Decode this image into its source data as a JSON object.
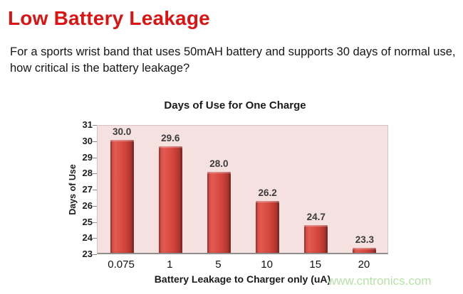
{
  "header": {
    "title": "Low Battery Leakage",
    "question": "For a sports wrist band that uses 50mAH battery and supports 30 days of normal use, how critical is the battery leakage?"
  },
  "watermark": "www.cntronics.com",
  "colors": {
    "title_red": "#dc1313",
    "bar_fill": "#d8453d",
    "bar_edge_dark": "#8c2722",
    "plot_bg": "#f4e1e0",
    "data_label": "#3b3b3b",
    "watermark_green": "#b6e3a7"
  },
  "chart_data": {
    "type": "bar",
    "title": "Days of Use for One Charge",
    "categories": [
      "0.075",
      "1",
      "5",
      "10",
      "15",
      "20"
    ],
    "values": [
      30.0,
      29.6,
      28.0,
      26.2,
      24.7,
      23.3
    ],
    "data_labels": [
      "30.0",
      "29.6",
      "28.0",
      "26.2",
      "24.7",
      "23.3"
    ],
    "xlabel": "Battery Leakage to Charger only (uA)",
    "ylabel": "Days of Use",
    "ylim": [
      23,
      31
    ],
    "ytick_step": 1,
    "grid": false,
    "legend": "none"
  }
}
